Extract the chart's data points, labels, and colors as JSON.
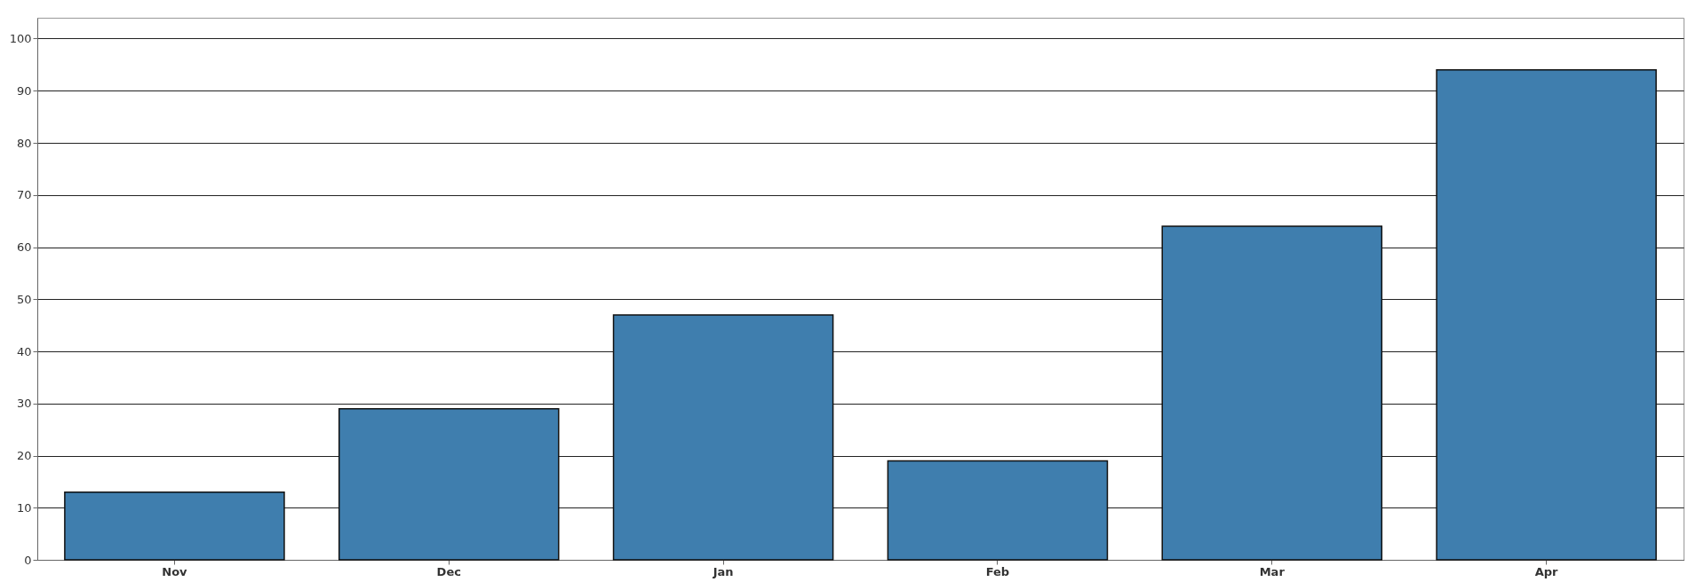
{
  "chart_data": {
    "type": "bar",
    "categories": [
      "Nov",
      "Dec",
      "Jan",
      "Feb",
      "Mar",
      "Apr"
    ],
    "series": [
      {
        "color": "#3f7eae",
        "values": [
          13,
          29,
          47,
          19,
          64,
          94
        ]
      }
    ],
    "ylim": [
      0,
      104
    ],
    "yticks": [
      0,
      10,
      20,
      30,
      40,
      50,
      60,
      70,
      80,
      90,
      100
    ],
    "grid": "y",
    "legend": false
  }
}
